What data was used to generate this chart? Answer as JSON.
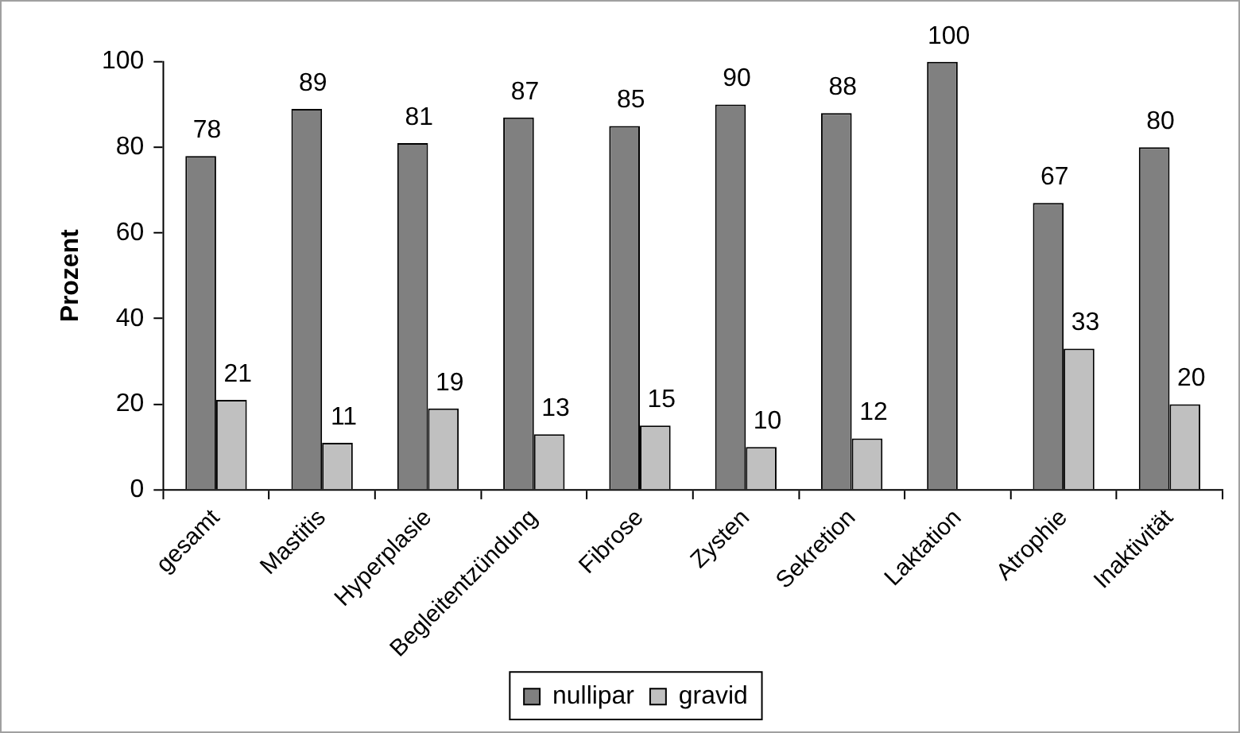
{
  "chart_data": {
    "type": "bar",
    "ylabel": "Prozent",
    "categories": [
      "gesamt",
      "Mastitis",
      "Hyperplasie",
      "Begleitentzündung",
      "Fibrose",
      "Zysten",
      "Sekretion",
      "Laktation",
      "Atrophie",
      "Inaktivität"
    ],
    "series": [
      {
        "name": "nullipar",
        "color": "#808080",
        "values": [
          78,
          89,
          81,
          87,
          85,
          90,
          88,
          100,
          67,
          80
        ]
      },
      {
        "name": "gravid",
        "color": "#c0c0c0",
        "values": [
          21,
          11,
          19,
          13,
          15,
          10,
          12,
          null,
          33,
          20
        ]
      }
    ],
    "ylim": [
      0,
      100
    ],
    "yticks": [
      0,
      20,
      40,
      60,
      80,
      100
    ],
    "grid": false,
    "legend": "bottom",
    "data_labels": true
  }
}
